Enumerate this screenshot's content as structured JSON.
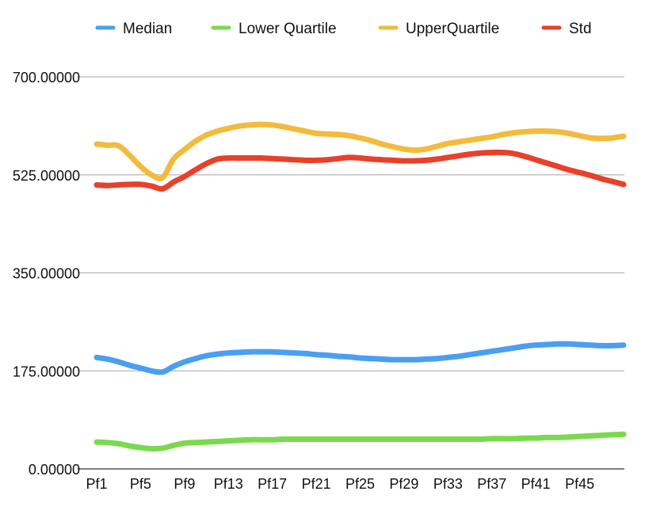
{
  "chart_data": {
    "type": "line",
    "title": "",
    "xlabel": "",
    "ylabel": "",
    "categories": [
      "Pf1",
      "Pf2",
      "Pf3",
      "Pf4",
      "Pf5",
      "Pf6",
      "Pf7",
      "Pf8",
      "Pf9",
      "Pf10",
      "Pf11",
      "Pf12",
      "Pf13",
      "Pf14",
      "Pf15",
      "Pf16",
      "Pf17",
      "Pf18",
      "Pf19",
      "Pf20",
      "Pf21",
      "Pf22",
      "Pf23",
      "Pf24",
      "Pf25",
      "Pf26",
      "Pf27",
      "Pf28",
      "Pf29",
      "Pf30",
      "Pf31",
      "Pf32",
      "Pf33",
      "Pf34",
      "Pf35",
      "Pf36",
      "Pf37",
      "Pf38",
      "Pf39",
      "Pf40",
      "Pf41",
      "Pf42",
      "Pf43",
      "Pf44",
      "Pf45",
      "Pf46",
      "Pf47",
      "Pf48",
      "Pf49"
    ],
    "x_tick_labels": [
      "Pf1",
      "Pf5",
      "Pf9",
      "Pf13",
      "Pf17",
      "Pf21",
      "Pf25",
      "Pf29",
      "Pf33",
      "Pf37",
      "Pf41",
      "Pf45"
    ],
    "y_ticks": [
      "0.00000",
      "175.00000",
      "350.00000",
      "525.00000",
      "700.00000"
    ],
    "ylim": [
      0,
      700
    ],
    "grid": true,
    "legend_position": "top",
    "series": [
      {
        "name": "Median",
        "color": "#4a9ff2",
        "values": [
          199,
          196,
          191,
          185,
          180,
          175,
          173,
          183,
          191,
          197,
          202,
          205,
          207,
          208,
          209,
          209,
          209,
          208,
          207,
          206,
          204,
          203,
          201,
          200,
          198,
          197,
          196,
          195,
          195,
          195,
          196,
          197,
          199,
          201,
          204,
          207,
          210,
          213,
          216,
          219,
          221,
          222,
          223,
          223,
          222,
          221,
          220,
          220,
          221
        ]
      },
      {
        "name": "Lower Quartile",
        "color": "#7bd94e",
        "values": [
          48,
          47,
          45,
          41,
          38,
          36,
          37,
          42,
          46,
          47,
          48,
          49,
          50,
          51,
          52,
          52,
          52,
          53,
          53,
          53,
          53,
          53,
          53,
          53,
          53,
          53,
          53,
          53,
          53,
          53,
          53,
          53,
          53,
          53,
          53,
          53,
          54,
          54,
          54,
          55,
          55,
          56,
          56,
          57,
          58,
          59,
          60,
          61,
          62
        ]
      },
      {
        "name": "UpperQuartile",
        "color": "#f2bb3c",
        "values": [
          580,
          578,
          577,
          560,
          540,
          525,
          520,
          553,
          570,
          585,
          596,
          603,
          608,
          612,
          614,
          615,
          614,
          611,
          607,
          603,
          599,
          598,
          597,
          595,
          591,
          586,
          580,
          575,
          571,
          569,
          571,
          576,
          581,
          584,
          587,
          590,
          593,
          597,
          600,
          602,
          603,
          603,
          602,
          599,
          595,
          591,
          590,
          591,
          594
        ]
      },
      {
        "name": "Std",
        "color": "#e8402a",
        "values": [
          507,
          506,
          507,
          508,
          508,
          505,
          500,
          512,
          522,
          534,
          545,
          553,
          555,
          555,
          555,
          555,
          554,
          553,
          552,
          551,
          551,
          552,
          554,
          556,
          555,
          553,
          552,
          551,
          550,
          550,
          551,
          553,
          556,
          559,
          562,
          564,
          565,
          565,
          563,
          558,
          552,
          546,
          540,
          534,
          529,
          524,
          518,
          513,
          508
        ]
      }
    ]
  }
}
